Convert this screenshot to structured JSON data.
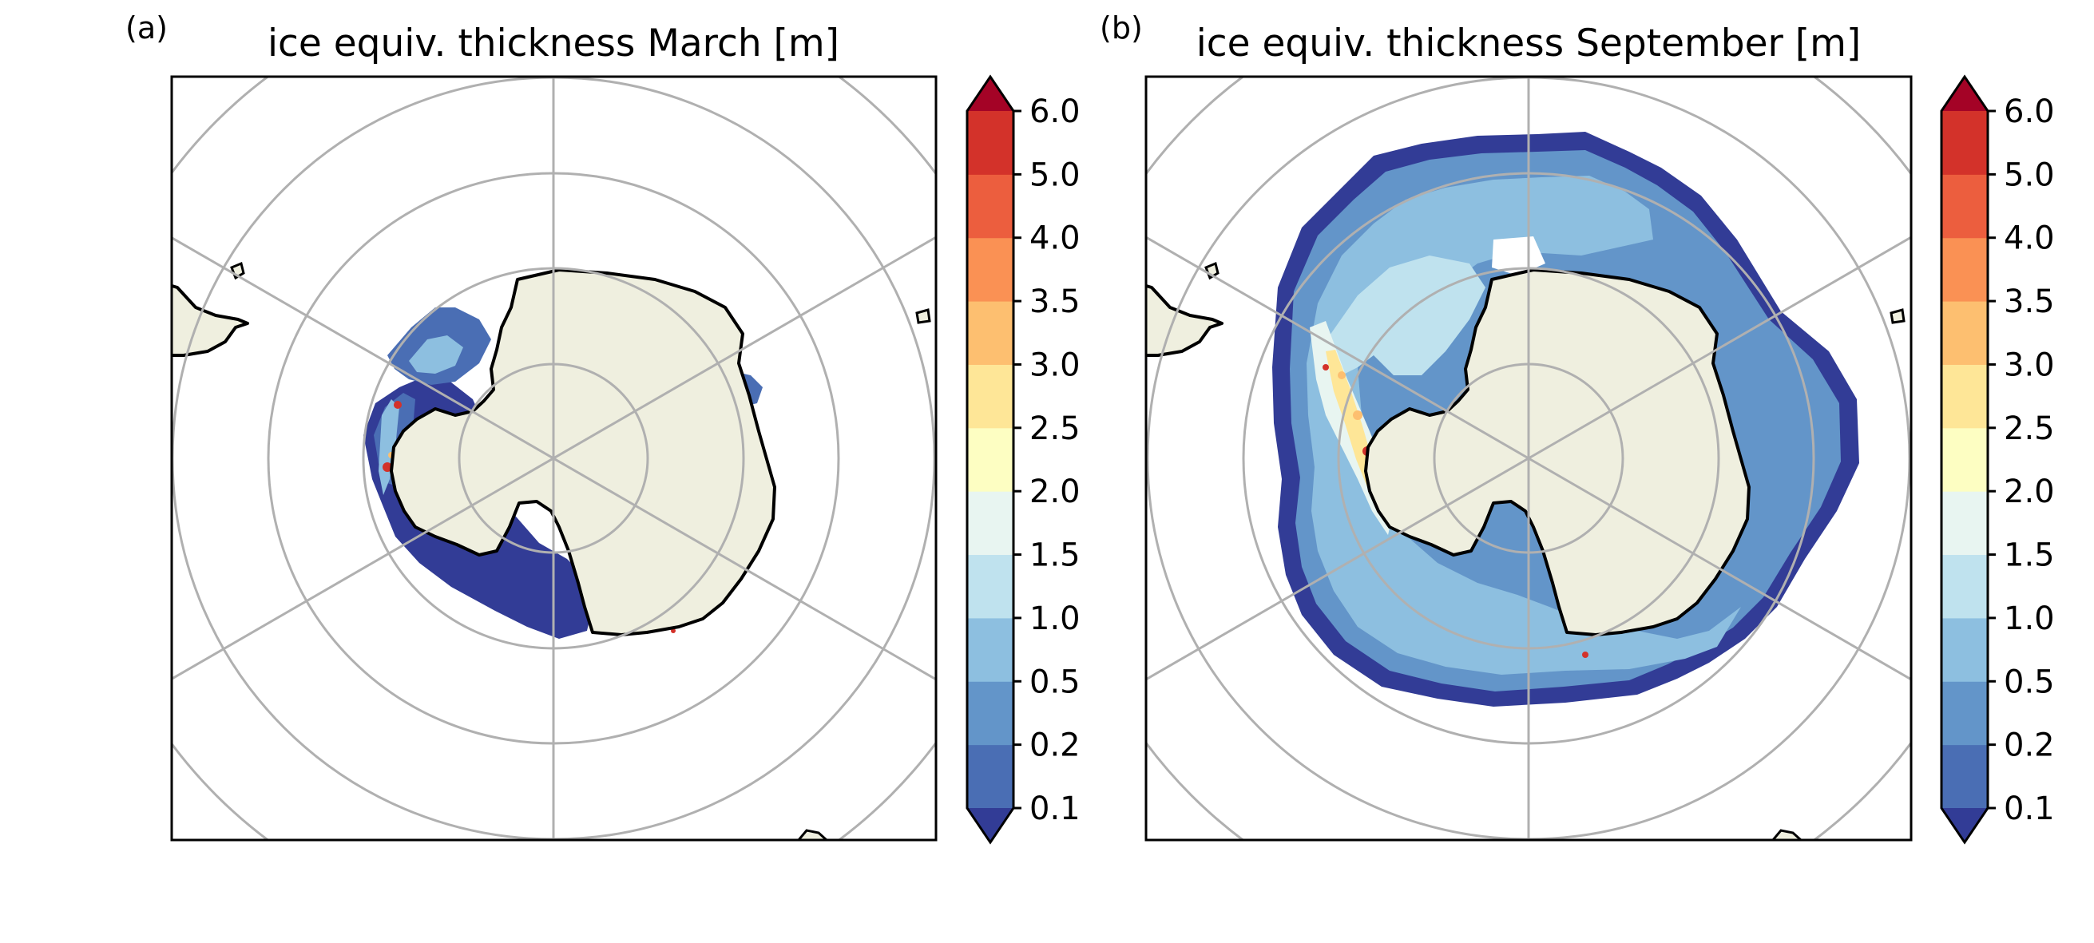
{
  "figure": {
    "panels": [
      {
        "letter": "(a)",
        "title": "ice equiv. thickness March [m]",
        "month": "March"
      },
      {
        "letter": "(b)",
        "title": "ice equiv. thickness September [m]",
        "month": "September"
      }
    ],
    "colorbar": {
      "levels": [
        "0.1",
        "0.2",
        "0.5",
        "1.0",
        "1.5",
        "2.0",
        "2.5",
        "3.0",
        "3.5",
        "4.0",
        "5.0",
        "6.0"
      ],
      "extend": "both",
      "bin_colors": [
        "#4a6eb4",
        "#6395c9",
        "#8dbfe0",
        "#bfe2ee",
        "#e8f5f1",
        "#fdfec2",
        "#fee697",
        "#fdbf70",
        "#fa9154",
        "#ec5e3e",
        "#d3322a"
      ],
      "under_color": "#323c96",
      "over_color": "#a40326"
    },
    "colors": {
      "land": "#efefdf",
      "coastline": "#000000",
      "gridline": "#b0b0b0"
    }
  }
}
